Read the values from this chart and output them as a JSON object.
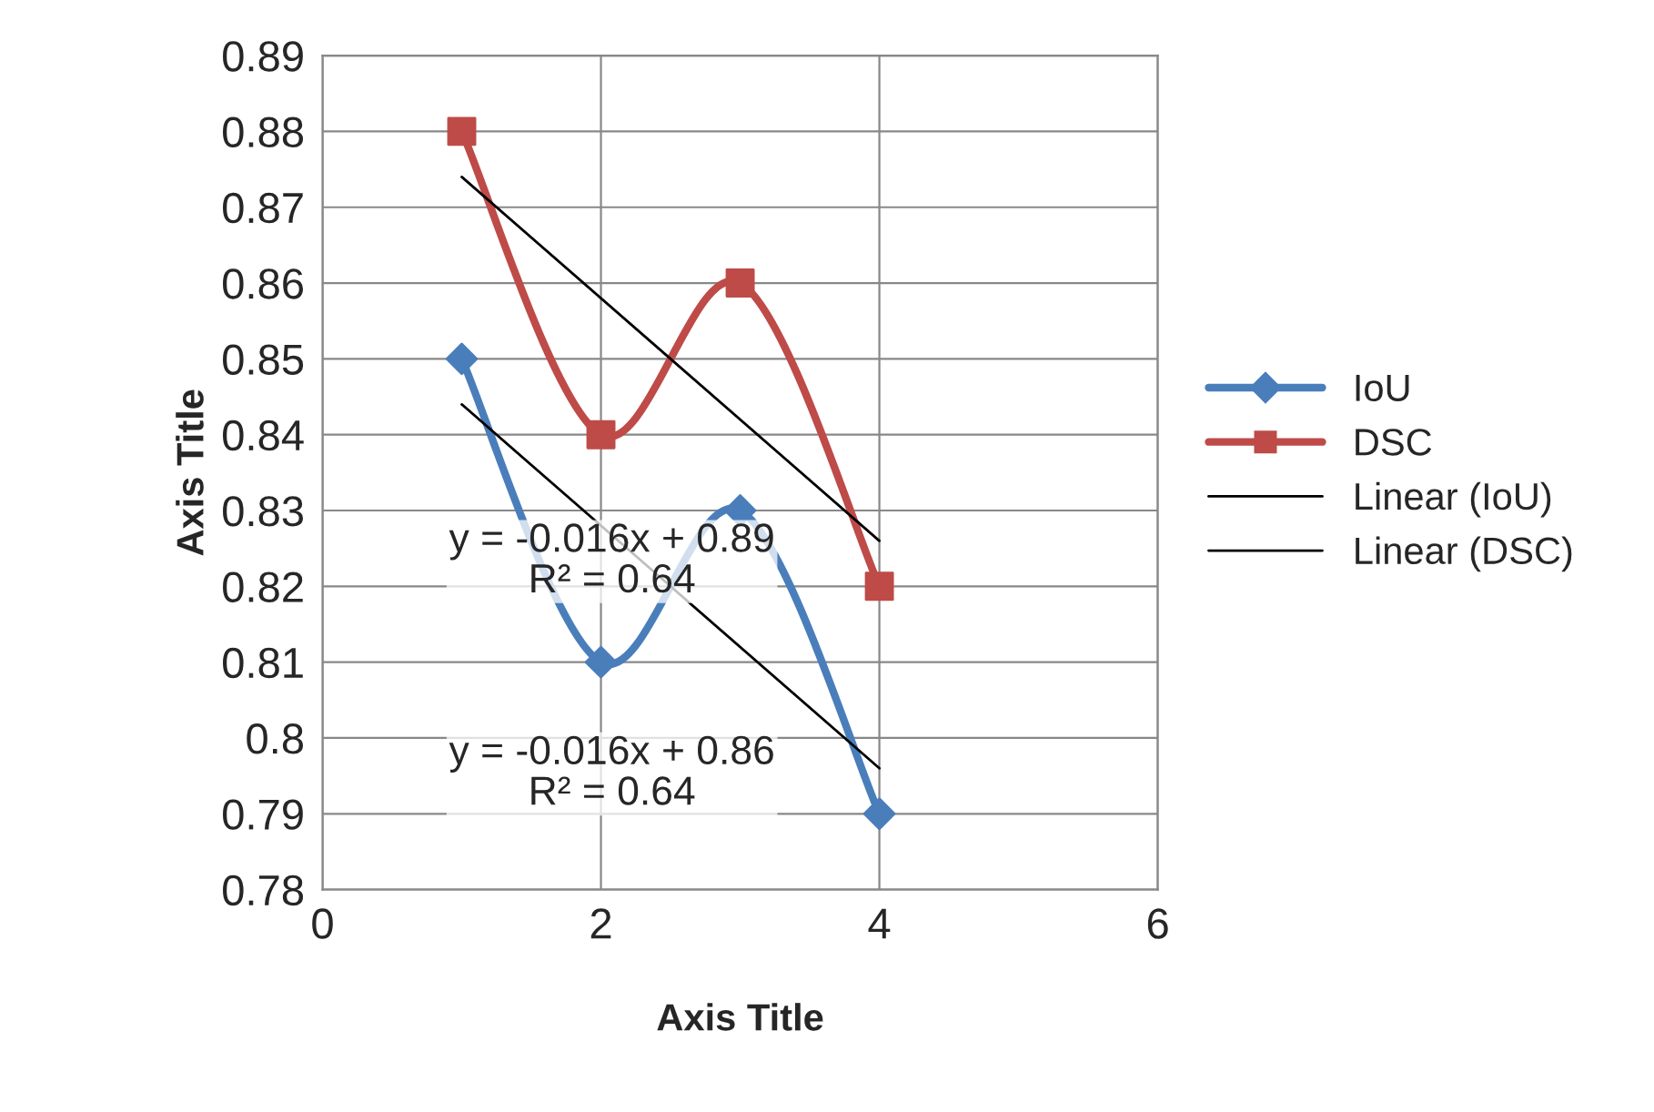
{
  "chart_data": {
    "type": "line",
    "xlabel": "Axis Title",
    "ylabel": "Axis Title",
    "xlim": [
      0,
      6
    ],
    "xticks": [
      0,
      2,
      4,
      6
    ],
    "ylim": [
      0.78,
      0.89
    ],
    "yticks": [
      0.78,
      0.79,
      0.8,
      0.81,
      0.82,
      0.83,
      0.84,
      0.85,
      0.86,
      0.87,
      0.88,
      0.89
    ],
    "grid": true,
    "legend": "right",
    "series": [
      {
        "name": "IoU",
        "color": "#4a7ebb",
        "x": [
          1,
          2,
          3,
          4
        ],
        "values": [
          0.85,
          0.81,
          0.83,
          0.79
        ],
        "marker": "diamond"
      },
      {
        "name": "DSC",
        "color": "#be4b48",
        "x": [
          1,
          2,
          3,
          4
        ],
        "values": [
          0.88,
          0.84,
          0.86,
          0.82
        ],
        "marker": "square"
      },
      {
        "name": "Linear (IoU)",
        "color": "#000000",
        "x": [
          1,
          4
        ],
        "values": [
          0.844,
          0.796
        ],
        "marker": "none"
      },
      {
        "name": "Linear (DSC)",
        "color": "#000000",
        "x": [
          1,
          4
        ],
        "values": [
          0.874,
          0.826
        ],
        "marker": "none"
      }
    ],
    "annotations": [
      "y = -0.016x + 0.89\nR² = 0.64",
      "y = -0.016x + 0.86\nR² = 0.64"
    ]
  }
}
